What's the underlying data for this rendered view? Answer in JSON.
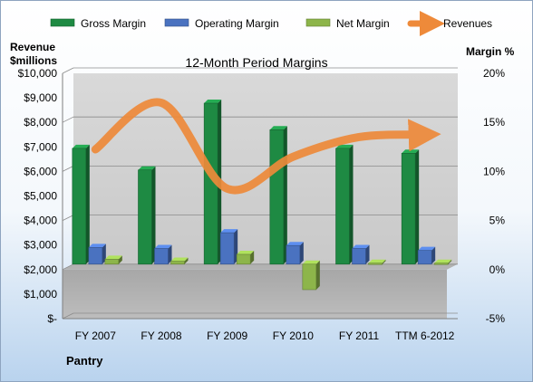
{
  "chart_data": {
    "type": "bar",
    "title": "12-Month Period Margins",
    "categories": [
      "FY 2007",
      "FY 2008",
      "FY 2009",
      "FY 2010",
      "FY 2011",
      "TTM 6-2012"
    ],
    "left_axis": {
      "label_line1": "Revenue",
      "label_line2": "$millions",
      "range": [
        0,
        10000
      ],
      "ticks": [
        0,
        1000,
        2000,
        3000,
        4000,
        5000,
        6000,
        7000,
        8000,
        9000,
        10000
      ],
      "tick_labels": [
        "$-",
        "$1,000",
        "$2,000",
        "$3,000",
        "$4,000",
        "$5,000",
        "$6,000",
        "$7,000",
        "$8,000",
        "$9,000",
        "$10,000"
      ]
    },
    "right_axis": {
      "label": "Margin %",
      "range": [
        -5,
        20
      ],
      "ticks": [
        -5,
        0,
        5,
        10,
        15,
        20
      ],
      "tick_labels": [
        "-5%",
        "0%",
        "5%",
        "10%",
        "15%",
        "20%"
      ]
    },
    "series": [
      {
        "name": "Gross Margin",
        "kind": "bar",
        "axis": "right",
        "color": "#1e8a43",
        "values": [
          11.8,
          9.6,
          16.4,
          13.7,
          11.8,
          11.3
        ]
      },
      {
        "name": "Operating Margin",
        "kind": "bar",
        "axis": "right",
        "color": "#4a72c0",
        "values": [
          1.7,
          1.6,
          3.2,
          1.9,
          1.6,
          1.4
        ]
      },
      {
        "name": "Net Margin",
        "kind": "bar",
        "axis": "right",
        "color": "#8db54a",
        "values": [
          0.5,
          0.3,
          1.0,
          -2.6,
          0.1,
          0.1
        ]
      },
      {
        "name": "Revenues",
        "kind": "line",
        "axis": "left",
        "color": "#ee8a3a",
        "values": [
          6900,
          8800,
          5300,
          6600,
          7400,
          7500
        ]
      }
    ],
    "grid": true,
    "legend_position": "top",
    "footer_label": "Pantry"
  }
}
